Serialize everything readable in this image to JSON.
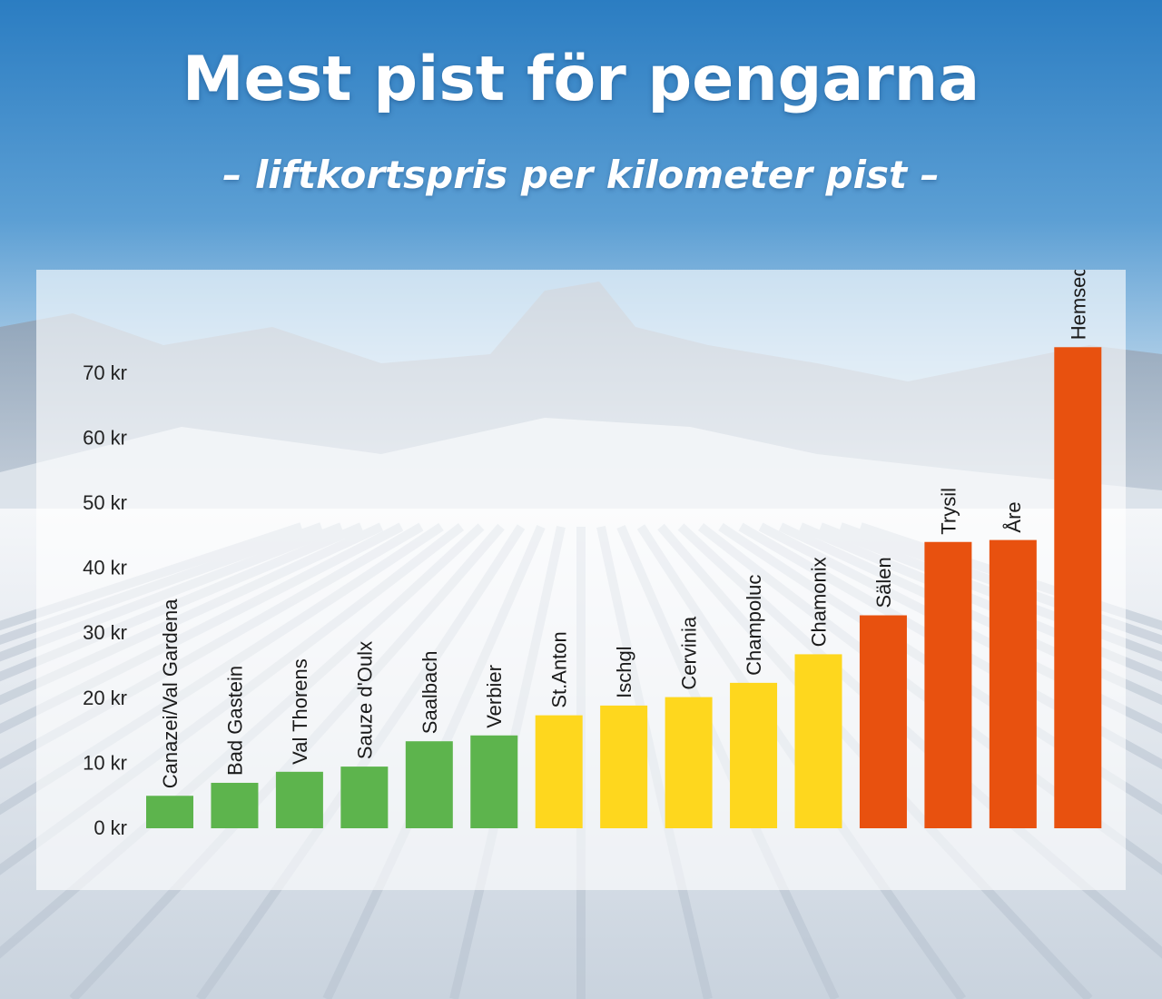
{
  "header": {
    "title": "Mest pist för pengarna",
    "subtitle": "– liftkortspris per kilometer pist –"
  },
  "colors": {
    "green": "#5db44d",
    "yellow": "#fed71e",
    "orange": "#e8510f",
    "sky_top": "#2b7dc2",
    "sky_bottom": "#cfe2f1"
  },
  "chart_data": {
    "type": "bar",
    "title": "Mest pist för pengarna",
    "subtitle": "– liftkortspris per kilometer pist –",
    "xlabel": "",
    "ylabel": "",
    "unit": "kr",
    "ylim": [
      0,
      74
    ],
    "yticks": [
      0,
      10,
      20,
      30,
      40,
      50,
      60,
      70
    ],
    "ytick_labels": [
      "0 kr",
      "10 kr",
      "20 kr",
      "30 kr",
      "40 kr",
      "50 kr",
      "60 kr",
      "70 kr"
    ],
    "grid": false,
    "legend": "none",
    "categories": [
      "Canazei/Val Gardena",
      "Bad Gastein",
      "Val Thorens",
      "Sauze d'Oulx",
      "Saalbach",
      "Verbier",
      "St.Anton",
      "Ischgl",
      "Cervinia",
      "Champoluc",
      "Chamonix",
      "Sälen",
      "Trysil",
      "Åre",
      "Hemsedal"
    ],
    "values": [
      5,
      7,
      8.7,
      9.5,
      13.4,
      14.3,
      17.4,
      18.9,
      20.2,
      22.4,
      26.8,
      32.8,
      44.1,
      44.4,
      74.1
    ],
    "bar_colors": [
      "#5db44d",
      "#5db44d",
      "#5db44d",
      "#5db44d",
      "#5db44d",
      "#5db44d",
      "#fed71e",
      "#fed71e",
      "#fed71e",
      "#fed71e",
      "#fed71e",
      "#e8510f",
      "#e8510f",
      "#e8510f",
      "#e8510f"
    ]
  }
}
